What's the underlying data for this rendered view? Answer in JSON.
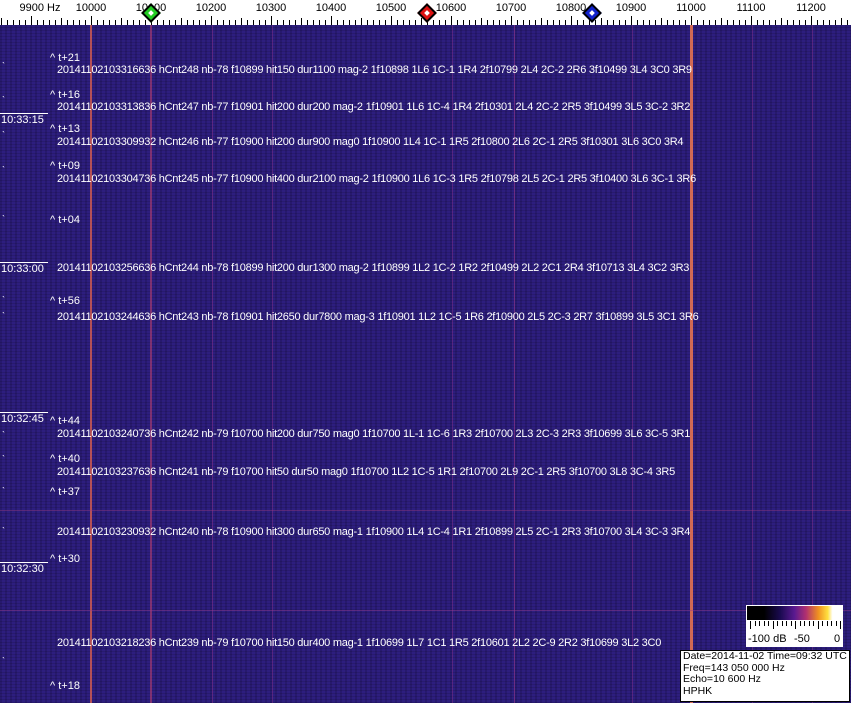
{
  "axis": {
    "unit_label": "9900 Hz",
    "labels": [
      "10000",
      "10100",
      "10200",
      "10300",
      "10400",
      "10500",
      "10600",
      "10700",
      "10800",
      "10900",
      "11000",
      "11100",
      "11200"
    ],
    "markers": [
      {
        "name": "green",
        "color": "#22cc22",
        "freq_hz": 10100
      },
      {
        "name": "red",
        "color": "#dd1111",
        "freq_hz": 10560
      },
      {
        "name": "blue",
        "color": "#1122cc",
        "freq_hz": 10835
      }
    ]
  },
  "time_labels": [
    "10:33:15",
    "10:33:00",
    "10:32:45",
    "10:32:30"
  ],
  "offsets": [
    "^ t+21",
    "^ t+16",
    "^ t+13",
    "^ t+09",
    "^ t+04",
    "^ t+56",
    "^ t+44",
    "^ t+40",
    "^ t+37",
    "^ t+30",
    "^ t+18"
  ],
  "detections": [
    "20141102103316636 hCnt248 nb-78 f10899 hit150 dur1100 mag-2 1f10898 1L6 1C-1 1R4 2f10799 2L4 2C-2 2R6 3f10499 3L4 3C0 3R9",
    "20141102103313836 hCnt247 nb-77 f10901 hit200 dur200 mag-2 1f10901 1L6 1C-4 1R4 2f10301 2L4 2C-2 2R5 3f10499 3L5 3C-2 3R2",
    "20141102103309932 hCnt246 nb-77 f10900 hit200 dur900 mag0 1f10900 1L4 1C-1 1R5 2f10800 2L6 2C-1 2R5 3f10301 3L6 3C0 3R4",
    "20141102103304736 hCnt245 nb-77 f10900 hit400 dur2100 mag-2 1f10900 1L6 1C-3 1R5 2f10798 2L5 2C-1 2R5 3f10400 3L6 3C-1 3R6",
    "20141102103256636 hCnt244 nb-78 f10899 hit200 dur1300 mag-2 1f10899 1L2 1C-2 1R2 2f10499 2L2 2C1 2R4 3f10713 3L4 3C2 3R3",
    "20141102103244636 hCnt243 nb-78 f10901 hit2650 dur7800 mag-3 1f10901 1L2 1C-5 1R6 2f10900 2L5 2C-3 2R7 3f10899 3L5 3C1 3R6",
    "20141102103240736 hCnt242 nb-79 f10700 hit200 dur750 mag0 1f10700 1L-1 1C-6 1R3 2f10700 2L3 2C-3 2R3 3f10699 3L6 3C-5 3R1",
    "20141102103237636 hCnt241 nb-79 f10700 hit50 dur50 mag0 1f10700 1L2 1C-5 1R1 2f10700 2L9 2C-1 2R5 3f10700 3L8 3C-4 3R5",
    "20141102103230932 hCnt240 nb-78 f10900 hit300 dur650 mag-1 1f10900 1L4 1C-4 1R1 2f10899 2L5 2C-1 2R3 3f10700 3L4 3C-3 3R4",
    "20141102103218236 hCnt239 nb-79 f10700 hit150 dur400 mag-1 1f10699 1L7 1C1 1R5 2f10601 2L2 2C-9 2R2 3f10699 3L2 3C0"
  ],
  "color_scale": {
    "labels": [
      "-100 dB",
      "-50",
      "0"
    ]
  },
  "info": {
    "date_time": "Date=2014-11-02 Time=09:32 UTC",
    "freq": "Freq=143 050 000 Hz",
    "echo": "Echo=10 600 Hz",
    "station": "HPHK"
  }
}
